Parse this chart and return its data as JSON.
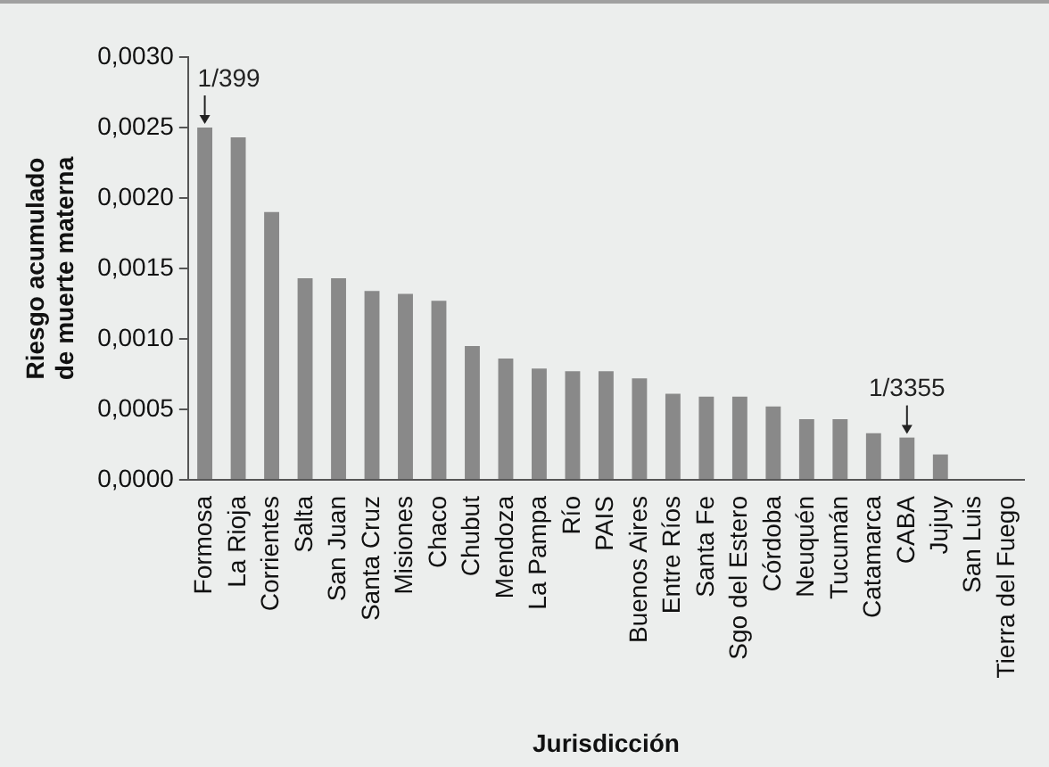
{
  "chart_data": {
    "type": "bar",
    "xlabel": "Jurisdicción",
    "ylabel": "Riesgo acumulado de muerte materna",
    "categories": [
      "Formosa",
      "La Rioja",
      "Corrientes",
      "Salta",
      "San Juan",
      "Santa Cruz",
      "Misiones",
      "Chaco",
      "Chubut",
      "Mendoza",
      "La Pampa",
      "Río",
      "PAIS",
      "Buenos Aires",
      "Entre Ríos",
      "Santa Fe",
      "Sgo del Estero",
      "Córdoba",
      "Neuquén",
      "Tucumán",
      "Catamarca",
      "CABA",
      "Jujuy",
      "San Luis",
      "Tierra del Fuego"
    ],
    "values": [
      0.0025,
      0.00243,
      0.0019,
      0.00143,
      0.00143,
      0.00134,
      0.00132,
      0.00127,
      0.00095,
      0.00086,
      0.00079,
      0.00077,
      0.00077,
      0.00072,
      0.00061,
      0.00059,
      0.00059,
      0.00052,
      0.00043,
      0.00043,
      0.00033,
      0.0003,
      0.00018,
      0,
      0
    ],
    "color": "#898989",
    "ylim": [
      0,
      0.003
    ],
    "yticks": [
      {
        "value": 0,
        "label": "0,0000"
      },
      {
        "value": 0.0005,
        "label": "0,0005"
      },
      {
        "value": 0.001,
        "label": "0,0010"
      },
      {
        "value": 0.0015,
        "label": "0,0015"
      },
      {
        "value": 0.002,
        "label": "0,0020"
      },
      {
        "value": 0.0025,
        "label": "0,0025"
      },
      {
        "value": 0.003,
        "label": "0,0030"
      }
    ],
    "annotations": [
      {
        "text": "1/399",
        "x": "Formosa",
        "y": 0.0025
      },
      {
        "text": "1/3355",
        "x": "CABA",
        "y": 0.0003
      }
    ],
    "grid": false,
    "legend": false
  }
}
